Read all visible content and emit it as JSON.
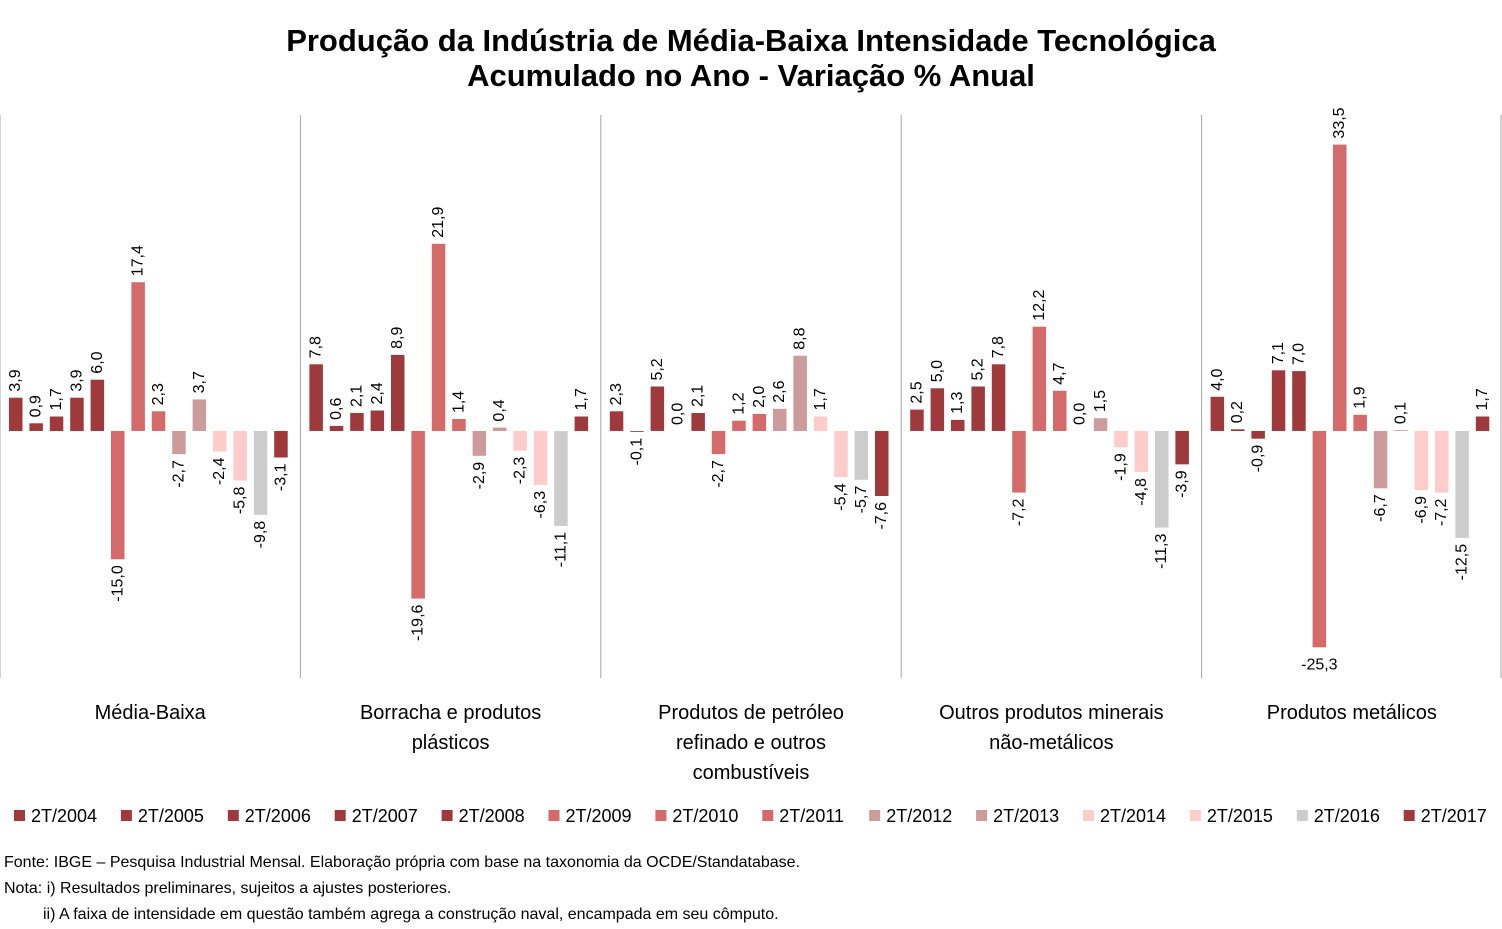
{
  "chart_data": {
    "type": "bar",
    "title": [
      "Produção da Indústria de Média-Baixa Intensidade Tecnológica",
      "Acumulado no Ano - Variação % Anual"
    ],
    "categories": [
      [
        "Média-Baixa"
      ],
      [
        "Borracha e produtos",
        "plásticos"
      ],
      [
        "Produtos de petróleo",
        "refinado e outros",
        "combustíveis"
      ],
      [
        "Outros produtos minerais",
        "não-metálicos"
      ],
      [
        "Produtos metálicos"
      ]
    ],
    "ylim": [
      -28,
      36
    ],
    "grid": false,
    "legend_position": "bottom",
    "series": [
      {
        "name": "2T/2004",
        "color": "#9e3a3c",
        "values": [
          3.9,
          7.8,
          2.3,
          2.5,
          4.0
        ],
        "labels": [
          "3,9",
          "7,8",
          "2,3",
          "2,5",
          "4,0"
        ]
      },
      {
        "name": "2T/2005",
        "color": "#9e3a3c",
        "values": [
          0.9,
          0.6,
          -0.1,
          5.0,
          0.2
        ],
        "labels": [
          "0,9",
          "0,6",
          "-0,1",
          "5,0",
          "0,2"
        ]
      },
      {
        "name": "2T/2006",
        "color": "#9e3a3c",
        "values": [
          1.7,
          2.1,
          5.2,
          1.3,
          -0.9
        ],
        "labels": [
          "1,7",
          "2,1",
          "5,2",
          "1,3",
          "-0,9"
        ]
      },
      {
        "name": "2T/2007",
        "color": "#9e3a3c",
        "values": [
          3.9,
          2.4,
          0.0,
          5.2,
          7.1
        ],
        "labels": [
          "3,9",
          "2,4",
          "0,0",
          "5,2",
          "7,1"
        ]
      },
      {
        "name": "2T/2008",
        "color": "#9e3a3c",
        "values": [
          6.0,
          8.9,
          2.1,
          7.8,
          7.0
        ],
        "labels": [
          "6,0",
          "8,9",
          "2,1",
          "7,8",
          "7,0"
        ]
      },
      {
        "name": "2T/2009",
        "color": "#d46a6a",
        "values": [
          -15.0,
          -19.6,
          -2.7,
          -7.2,
          -25.3
        ],
        "labels": [
          "-15,0",
          "-19,6",
          "-2,7",
          "-7,2",
          "-25,3"
        ]
      },
      {
        "name": "2T/2010",
        "color": "#d46a6a",
        "values": [
          17.4,
          21.9,
          1.2,
          12.2,
          33.5
        ],
        "labels": [
          "17,4",
          "21,9",
          "1,2",
          "12,2",
          "33,5"
        ]
      },
      {
        "name": "2T/2011",
        "color": "#d46a6a",
        "values": [
          2.3,
          1.4,
          2.0,
          4.7,
          1.9
        ],
        "labels": [
          "2,3",
          "1,4",
          "2,0",
          "4,7",
          "1,9"
        ]
      },
      {
        "name": "2T/2012",
        "color": "#cc9b9b",
        "values": [
          -2.7,
          -2.9,
          2.6,
          0.0,
          -6.7
        ],
        "labels": [
          "-2,7",
          "-2,9",
          "2,6",
          "0,0",
          "-6,7"
        ]
      },
      {
        "name": "2T/2013",
        "color": "#cc9b9b",
        "values": [
          3.7,
          0.4,
          8.8,
          1.5,
          0.1
        ],
        "labels": [
          "3,7",
          "0,4",
          "8,8",
          "1,5",
          "0,1"
        ]
      },
      {
        "name": "2T/2014",
        "color": "#ffcccc",
        "values": [
          -2.4,
          -2.3,
          1.7,
          -1.9,
          -6.9
        ],
        "labels": [
          "-2,4",
          "-2,3",
          "1,7",
          "-1,9",
          "-6,9"
        ]
      },
      {
        "name": "2T/2015",
        "color": "#ffcccc",
        "values": [
          -5.8,
          -6.3,
          -5.4,
          -4.8,
          -7.2
        ],
        "labels": [
          "-5,8",
          "-6,3",
          "-5,4",
          "-4,8",
          "-7,2"
        ]
      },
      {
        "name": "2T/2016",
        "color": "#cccccc",
        "values": [
          -9.8,
          -11.1,
          -5.7,
          -11.3,
          -12.5
        ],
        "labels": [
          "-9,8",
          "-11,1",
          "-5,7",
          "-11,3",
          "-12,5"
        ]
      },
      {
        "name": "2T/2017",
        "color": "#9e3a3c",
        "values": [
          -3.1,
          1.7,
          -7.6,
          -3.9,
          1.7
        ],
        "labels": [
          "-3,1",
          "1,7",
          "-7,6",
          "-3,9",
          "1,7"
        ]
      }
    ]
  },
  "notes": {
    "source": "Fonte: IBGE – Pesquisa Industrial Mensal. Elaboração própria com base na taxonomia da OCDE/Standatabase.",
    "note1": "Nota: i) Resultados preliminares, sujeitos a ajustes posteriores.",
    "note2": "ii) A faixa de intensidade em questão também agrega a construção naval, encampada em seu cômputo."
  }
}
